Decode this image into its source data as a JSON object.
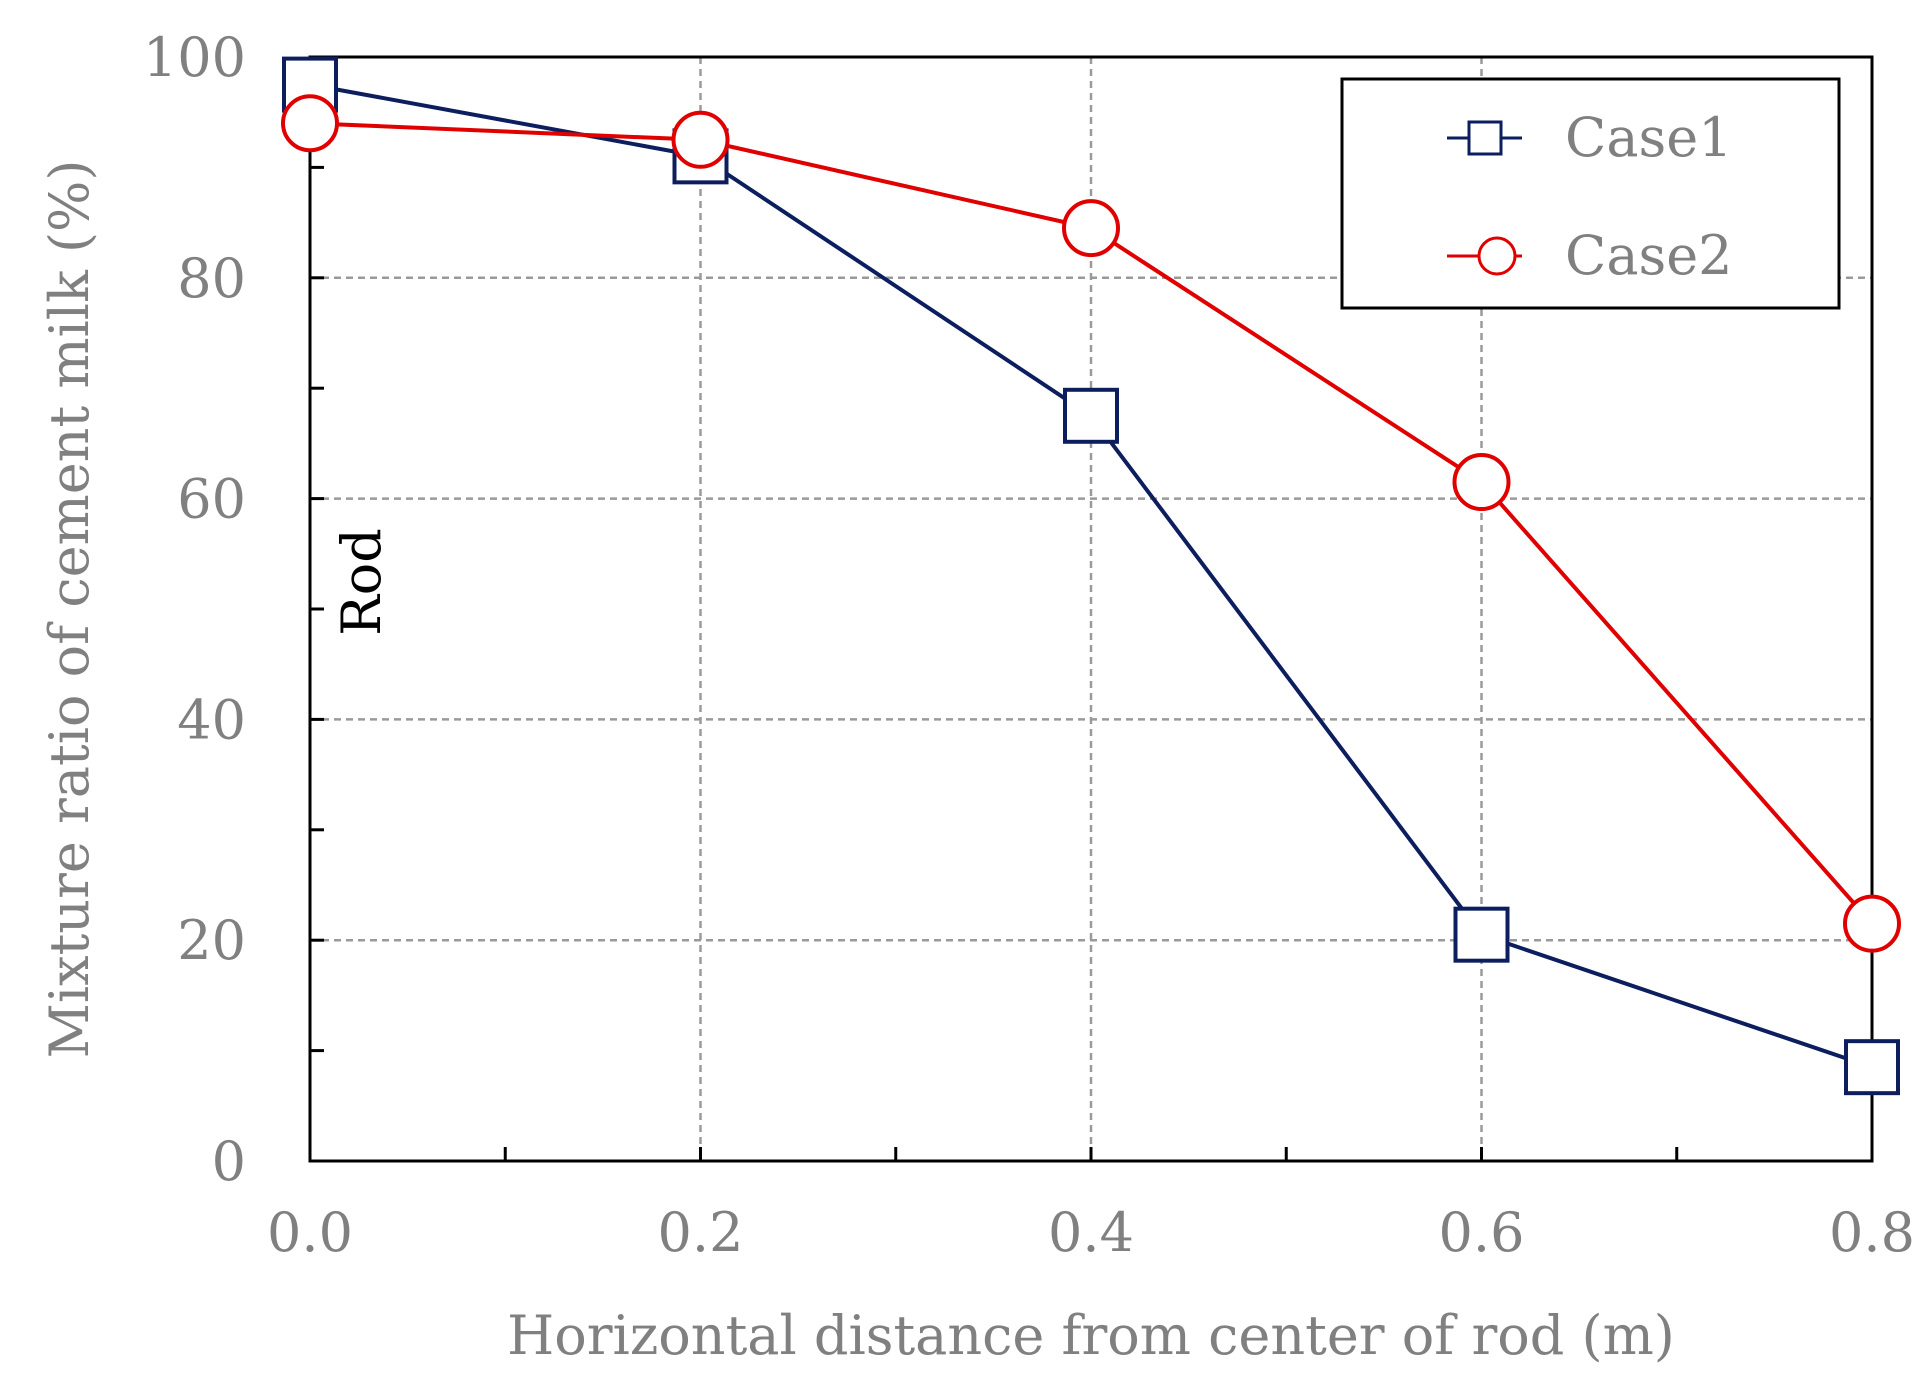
{
  "chart_data": {
    "type": "line",
    "xlabel": "Horizontal distance from center of rod (m)",
    "ylabel": "Mixture ratio of cement milk (%)",
    "x": [
      0.0,
      0.2,
      0.4,
      0.6,
      0.8
    ],
    "xlim": [
      0.0,
      0.8
    ],
    "ylim": [
      0,
      100
    ],
    "xticks": [
      "0.0",
      "0.2",
      "0.4",
      "0.6",
      "0.8"
    ],
    "yticks": [
      "0",
      "20",
      "40",
      "60",
      "80",
      "100"
    ],
    "grid": true,
    "legend_position": "top-right",
    "annotation": "Rod",
    "series": [
      {
        "name": "Case1",
        "marker": "square",
        "color": "#0d1e5e",
        "values": [
          97.5,
          91,
          67.5,
          20.5,
          8.5
        ]
      },
      {
        "name": "Case2",
        "marker": "circle",
        "color": "#e00000",
        "values": [
          94,
          92.5,
          84.5,
          61.5,
          21.5
        ]
      }
    ]
  }
}
